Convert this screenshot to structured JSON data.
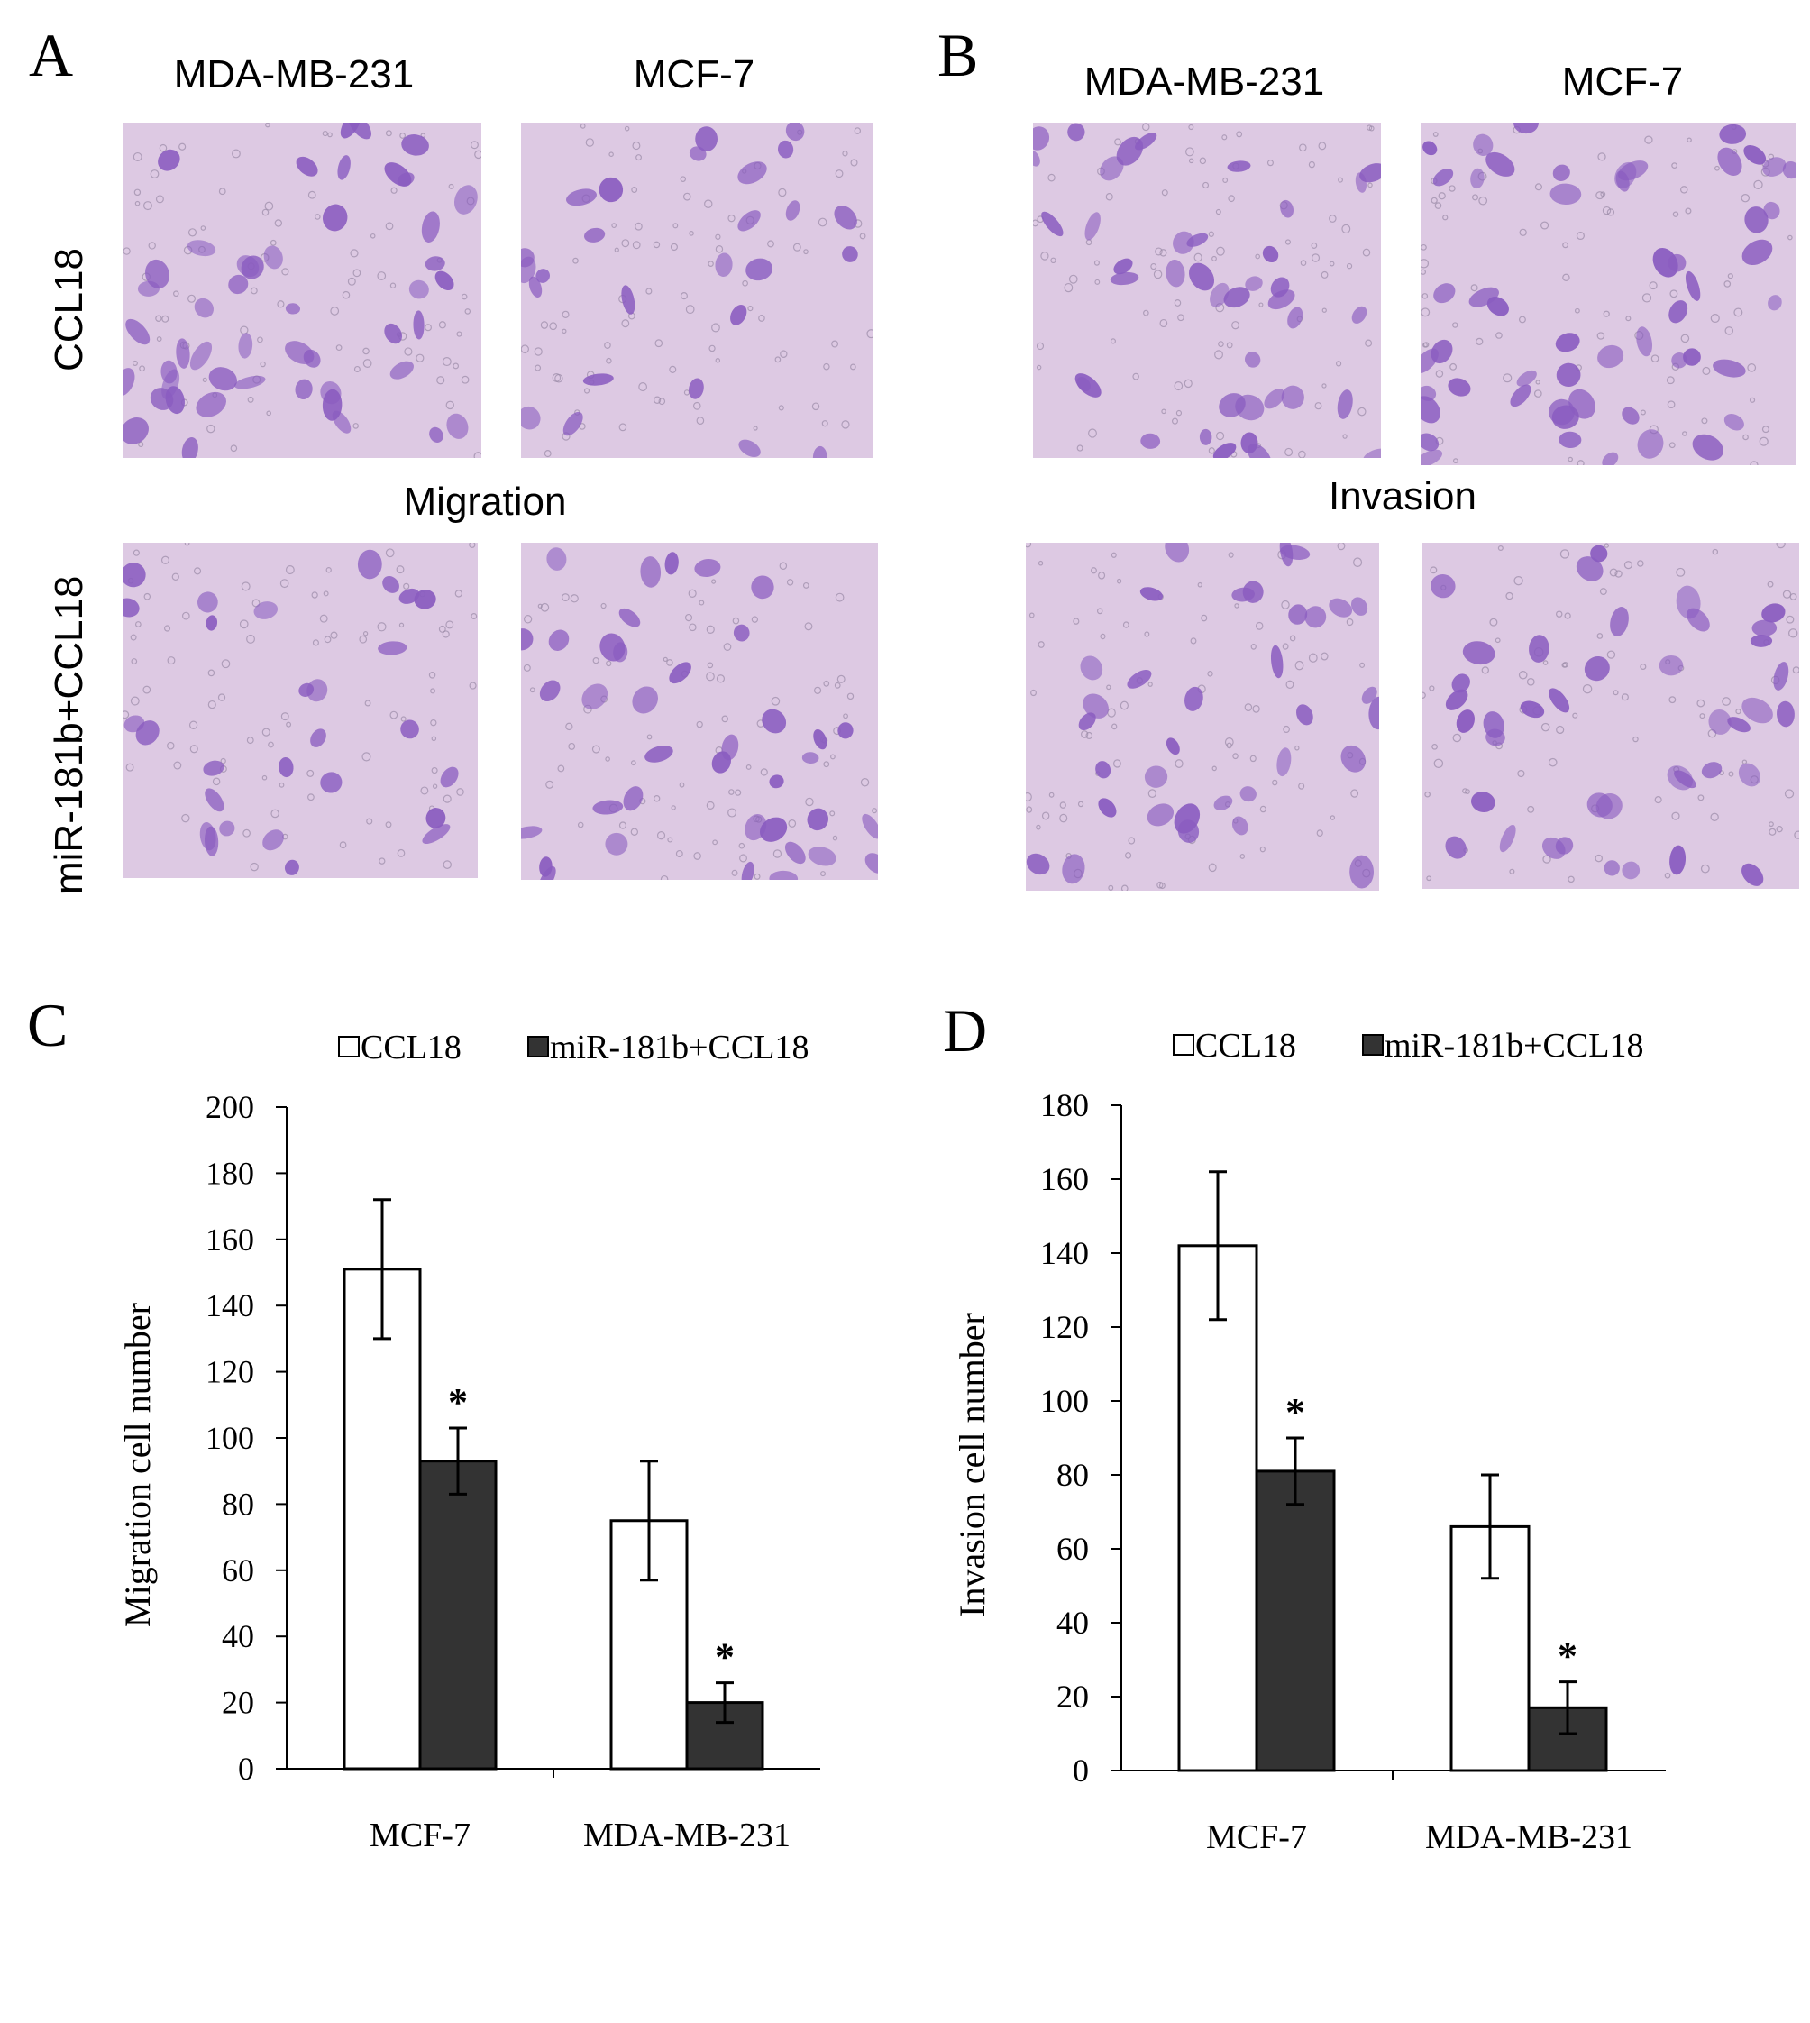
{
  "panels": {
    "A": {
      "letter": "A",
      "columns": [
        "MDA-MB-231",
        "MCF-7"
      ],
      "rows": [
        "CCL18",
        "miR-181b+CCL18"
      ],
      "middle_label": "Migration"
    },
    "B": {
      "letter": "B",
      "columns": [
        "MDA-MB-231",
        "MCF-7"
      ],
      "middle_label": "Invasion"
    },
    "C": {
      "letter": "C"
    },
    "D": {
      "letter": "D"
    }
  },
  "colors": {
    "stain_background": "#ddc9e3",
    "cell": "#8a5cc0",
    "ccl18_bar": "#ffffff",
    "mir_bar": "#333333"
  },
  "chart_data": [
    {
      "type": "bar",
      "categories": [
        "MCF-7",
        "MDA-MB-231"
      ],
      "series": [
        {
          "name": "CCL18",
          "values": [
            151,
            75
          ],
          "errors": [
            21,
            18
          ]
        },
        {
          "name": "miR-181b+CCL18",
          "values": [
            93,
            20
          ],
          "errors": [
            10,
            6
          ]
        }
      ],
      "significance": [
        "*",
        "*"
      ],
      "ylabel": "Migration cell number",
      "xlabel": "",
      "ylim": [
        0,
        200
      ],
      "yticks": [
        "0",
        "20",
        "40",
        "60",
        "80",
        "100",
        "120",
        "140",
        "160",
        "180",
        "200"
      ],
      "legend_placement": "top",
      "grid": false
    },
    {
      "type": "bar",
      "categories": [
        "MCF-7",
        "MDA-MB-231"
      ],
      "series": [
        {
          "name": "CCL18",
          "values": [
            142,
            66
          ],
          "errors": [
            20,
            14
          ]
        },
        {
          "name": "miR-181b+CCL18",
          "values": [
            81,
            17
          ],
          "errors": [
            9,
            7
          ]
        }
      ],
      "significance": [
        "*",
        "*"
      ],
      "ylabel": "Invasion cell number",
      "xlabel": "",
      "ylim": [
        0,
        180
      ],
      "yticks": [
        "0",
        "20",
        "40",
        "60",
        "80",
        "100",
        "120",
        "140",
        "160",
        "180"
      ],
      "legend_placement": "top",
      "grid": false
    }
  ]
}
